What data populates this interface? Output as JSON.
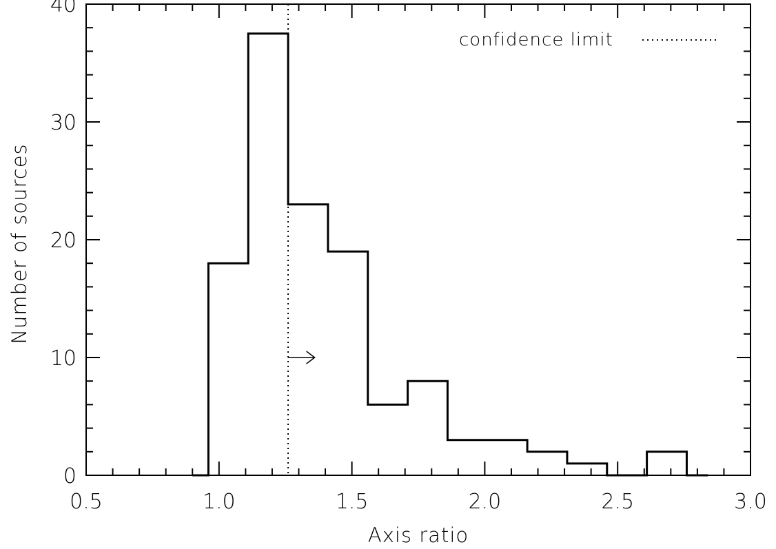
{
  "chart_data": {
    "type": "histogram",
    "xlabel": "Axis ratio",
    "ylabel": "Number of sources",
    "xlim": [
      0.5,
      3.0
    ],
    "ylim": [
      0,
      40
    ],
    "x_ticks": [
      "0.5",
      "1.0",
      "1.5",
      "2.0",
      "2.5",
      "3.0"
    ],
    "x_tick_values": [
      0.5,
      1.0,
      1.5,
      2.0,
      2.5,
      3.0
    ],
    "y_ticks": [
      "0",
      "10",
      "20",
      "30",
      "40"
    ],
    "y_tick_values": [
      0,
      10,
      20,
      30,
      40
    ],
    "bins": [
      {
        "x0": 0.9,
        "x1": 0.96,
        "count": 0
      },
      {
        "x0": 0.96,
        "x1": 1.11,
        "count": 18
      },
      {
        "x0": 1.11,
        "x1": 1.26,
        "count": 37.5
      },
      {
        "x0": 1.26,
        "x1": 1.41,
        "count": 23
      },
      {
        "x0": 1.41,
        "x1": 1.56,
        "count": 19
      },
      {
        "x0": 1.56,
        "x1": 1.71,
        "count": 6
      },
      {
        "x0": 1.71,
        "x1": 1.86,
        "count": 8
      },
      {
        "x0": 1.86,
        "x1": 2.01,
        "count": 3
      },
      {
        "x0": 2.01,
        "x1": 2.16,
        "count": 3
      },
      {
        "x0": 2.16,
        "x1": 2.31,
        "count": 2
      },
      {
        "x0": 2.31,
        "x1": 2.46,
        "count": 1
      },
      {
        "x0": 2.46,
        "x1": 2.61,
        "count": 0
      },
      {
        "x0": 2.61,
        "x1": 2.76,
        "count": 2
      },
      {
        "x0": 2.76,
        "x1": 2.84,
        "count": 0
      }
    ],
    "confidence_limit_x": 1.26,
    "arrow": {
      "x_start": 1.26,
      "x_end": 1.36,
      "y": 10
    },
    "legend": {
      "label": "confidence limit",
      "line_style": "dotted",
      "position": "top-right"
    },
    "colors": {
      "line": "#000000",
      "background": "#ffffff"
    }
  }
}
